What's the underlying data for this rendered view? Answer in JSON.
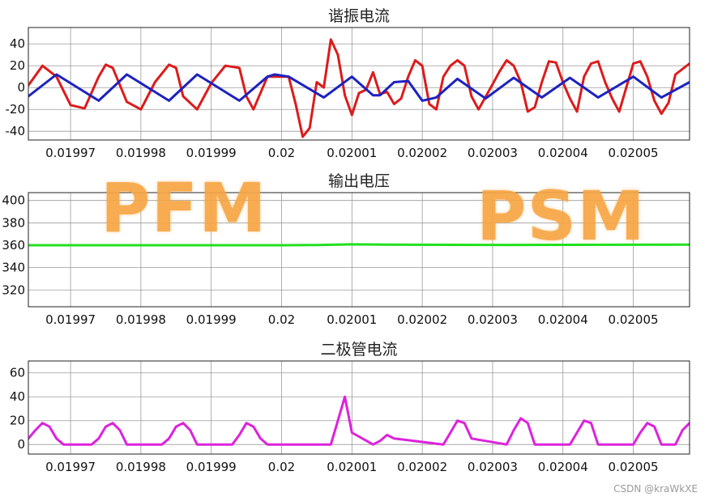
{
  "colors": {
    "resonant_current": "#DD1B1B",
    "magnetizing_current": "#1C22C0",
    "output_voltage": "#22E01E",
    "diode_current": "#DD22DD",
    "overlay": "#F7A644"
  },
  "overlays": {
    "left": "PFM",
    "right": "PSM"
  },
  "watermark": "CSDN @kraWkXE",
  "chart_data": [
    {
      "type": "line",
      "title": "谐振电流",
      "xlabel": "",
      "ylabel": "",
      "xlim": [
        0.019964,
        0.020058
      ],
      "ylim": [
        -48,
        55
      ],
      "xticks": [
        0.01997,
        0.01998,
        0.01999,
        0.02,
        0.02001,
        0.02002,
        0.02003,
        0.02004,
        0.02005
      ],
      "xtick_labels": [
        "0.01997",
        "0.01998",
        "0.01999",
        "0.02",
        "0.02001",
        "0.02002",
        "0.02003",
        "0.02004",
        "0.02005"
      ],
      "yticks": [
        -40,
        -20,
        0,
        20,
        40
      ],
      "ytick_labels": [
        "-40",
        "-20",
        "0",
        "20",
        "40"
      ],
      "grid": true,
      "series": [
        {
          "color_key": "resonant_current",
          "x": [
            0.019964,
            0.019966,
            0.019968,
            0.01997,
            0.019972,
            0.019974,
            0.019975,
            0.019976,
            0.019978,
            0.01998,
            0.019982,
            0.019984,
            0.019985,
            0.019986,
            0.019988,
            0.01999,
            0.019992,
            0.019994,
            0.019995,
            0.019996,
            0.019998,
            0.02,
            0.020001,
            0.020002,
            0.020003,
            0.020004,
            0.020005,
            0.020006,
            0.020007,
            0.020008,
            0.020009,
            0.02001,
            0.020011,
            0.020012,
            0.020013,
            0.020014,
            0.020015,
            0.020016,
            0.020017,
            0.020018,
            0.020019,
            0.02002,
            0.020021,
            0.020022,
            0.020023,
            0.020024,
            0.020025,
            0.020026,
            0.020027,
            0.020028,
            0.02003,
            0.020031,
            0.020032,
            0.020033,
            0.020034,
            0.020035,
            0.020036,
            0.020037,
            0.020038,
            0.020039,
            0.02004,
            0.020041,
            0.020042,
            0.020043,
            0.020044,
            0.020045,
            0.020046,
            0.020047,
            0.020048,
            0.020049,
            0.02005,
            0.020051,
            0.020052,
            0.020053,
            0.020054,
            0.020055,
            0.020056,
            0.020058
          ],
          "y": [
            2,
            20,
            10,
            -16,
            -19,
            10,
            21,
            18,
            -13,
            -20,
            5,
            21,
            18,
            -8,
            -20,
            4,
            20,
            18,
            -8,
            -20,
            10,
            10,
            10,
            -15,
            -45,
            -37,
            5,
            0,
            44,
            30,
            -7,
            -25,
            -5,
            -2,
            14,
            -6,
            -4,
            -15,
            -10,
            10,
            25,
            20,
            -15,
            -20,
            10,
            20,
            25,
            20,
            -8,
            -20,
            3,
            15,
            25,
            20,
            5,
            -22,
            -18,
            5,
            24,
            23,
            5,
            -10,
            -22,
            10,
            22,
            24,
            5,
            -10,
            -22,
            0,
            22,
            24,
            10,
            -12,
            -24,
            -14,
            12,
            22
          ]
        },
        {
          "color_key": "magnetizing_current",
          "x": [
            0.019964,
            0.019968,
            0.019974,
            0.019978,
            0.019984,
            0.019988,
            0.019994,
            0.019998,
            0.019999,
            0.020001,
            0.020006,
            0.02001,
            0.020013,
            0.020014,
            0.020016,
            0.020018,
            0.02002,
            0.020022,
            0.020025,
            0.020029,
            0.020033,
            0.020037,
            0.020041,
            0.020045,
            0.02005,
            0.020054,
            0.020058
          ],
          "y": [
            -8,
            12,
            -12,
            12,
            -12,
            12,
            -12,
            10,
            12,
            10,
            -9,
            10,
            -7,
            -7,
            5,
            6,
            -12,
            -9,
            8,
            -10,
            9,
            -9,
            9,
            -9,
            10,
            -9,
            5
          ]
        }
      ]
    },
    {
      "type": "line",
      "title": "输出电压",
      "xlabel": "",
      "ylabel": "",
      "xlim": [
        0.019964,
        0.020058
      ],
      "ylim": [
        305,
        407
      ],
      "xticks": [
        0.01997,
        0.01998,
        0.01999,
        0.02,
        0.02001,
        0.02002,
        0.02003,
        0.02004,
        0.02005
      ],
      "xtick_labels": [
        "0.01997",
        "0.01998",
        "0.01999",
        "0.02",
        "0.02001",
        "0.02002",
        "0.02003",
        "0.02004",
        "0.02005"
      ],
      "yticks": [
        320,
        340,
        360,
        380,
        400
      ],
      "ytick_labels": [
        "320",
        "340",
        "360",
        "380",
        "400"
      ],
      "grid": true,
      "series": [
        {
          "color_key": "output_voltage",
          "x": [
            0.019964,
            0.01998,
            0.02,
            0.020005,
            0.02001,
            0.020015,
            0.02003,
            0.020058
          ],
          "y": [
            360,
            360,
            360,
            360.2,
            360.8,
            360.5,
            360.3,
            360.5
          ]
        }
      ]
    },
    {
      "type": "line",
      "title": "二极管电流",
      "xlabel": "",
      "ylabel": "",
      "xlim": [
        0.019964,
        0.020058
      ],
      "ylim": [
        -8,
        70
      ],
      "xticks": [
        0.01997,
        0.01998,
        0.01999,
        0.02,
        0.02001,
        0.02002,
        0.02003,
        0.02004,
        0.02005
      ],
      "xtick_labels": [
        "0.01997",
        "0.01998",
        "0.01999",
        "0.02",
        "0.02001",
        "0.02002",
        "0.02003",
        "0.02004",
        "0.02005"
      ],
      "yticks": [
        0,
        20,
        40,
        60
      ],
      "ytick_labels": [
        "0",
        "20",
        "40",
        "60"
      ],
      "grid": true,
      "series": [
        {
          "color_key": "diode_current",
          "x": [
            0.019964,
            0.019965,
            0.019966,
            0.019967,
            0.019968,
            0.019969,
            0.01997,
            0.019973,
            0.019974,
            0.019975,
            0.019976,
            0.019977,
            0.019978,
            0.019983,
            0.019984,
            0.019985,
            0.019986,
            0.019987,
            0.019988,
            0.019993,
            0.019994,
            0.019995,
            0.019996,
            0.019997,
            0.019998,
            0.020007,
            0.020008,
            0.020009,
            0.02001,
            0.020013,
            0.020014,
            0.020015,
            0.020016,
            0.020023,
            0.020024,
            0.020025,
            0.020026,
            0.020027,
            0.020032,
            0.020033,
            0.020034,
            0.020035,
            0.020036,
            0.020041,
            0.020042,
            0.020043,
            0.020044,
            0.020045,
            0.02005,
            0.020051,
            0.020052,
            0.020053,
            0.020054,
            0.020056,
            0.020057,
            0.020058
          ],
          "y": [
            5,
            12,
            18,
            15,
            5,
            0,
            0,
            0,
            5,
            15,
            18,
            12,
            0,
            0,
            5,
            15,
            18,
            12,
            0,
            0,
            8,
            18,
            15,
            5,
            0,
            0,
            20,
            40,
            10,
            0,
            3,
            8,
            5,
            0,
            10,
            20,
            18,
            5,
            0,
            12,
            22,
            18,
            0,
            0,
            10,
            20,
            18,
            0,
            0,
            10,
            18,
            15,
            0,
            0,
            12,
            18
          ]
        }
      ]
    }
  ]
}
